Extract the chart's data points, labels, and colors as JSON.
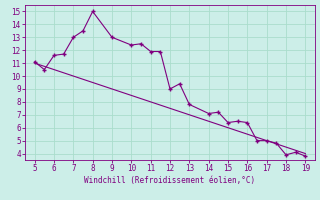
{
  "x_data": [
    5,
    5.5,
    6,
    6.5,
    7,
    7.5,
    8,
    9,
    10,
    10.5,
    11,
    11.5,
    12,
    12.5,
    13,
    14,
    14.5,
    15,
    15.5,
    16,
    16.5,
    17,
    17.5,
    18,
    18.5,
    19
  ],
  "y_data": [
    11.1,
    10.5,
    11.6,
    11.7,
    13.0,
    13.5,
    15.0,
    13.0,
    12.4,
    12.5,
    11.9,
    11.9,
    9.0,
    9.4,
    7.8,
    7.1,
    7.2,
    6.4,
    6.5,
    6.4,
    5.0,
    5.0,
    4.8,
    3.9,
    4.1,
    3.8
  ],
  "trend_x": [
    5,
    19
  ],
  "trend_y": [
    11.0,
    4.0
  ],
  "color": "#800080",
  "bg_color": "#cceee8",
  "grid_color": "#aaddcc",
  "xlabel": "Windchill (Refroidissement éolien,°C)",
  "xlim": [
    4.5,
    19.5
  ],
  "ylim": [
    3.5,
    15.5
  ],
  "xticks": [
    5,
    6,
    7,
    8,
    9,
    10,
    11,
    12,
    13,
    14,
    15,
    16,
    17,
    18,
    19
  ],
  "yticks": [
    4,
    5,
    6,
    7,
    8,
    9,
    10,
    11,
    12,
    13,
    14,
    15
  ],
  "marker": "+"
}
